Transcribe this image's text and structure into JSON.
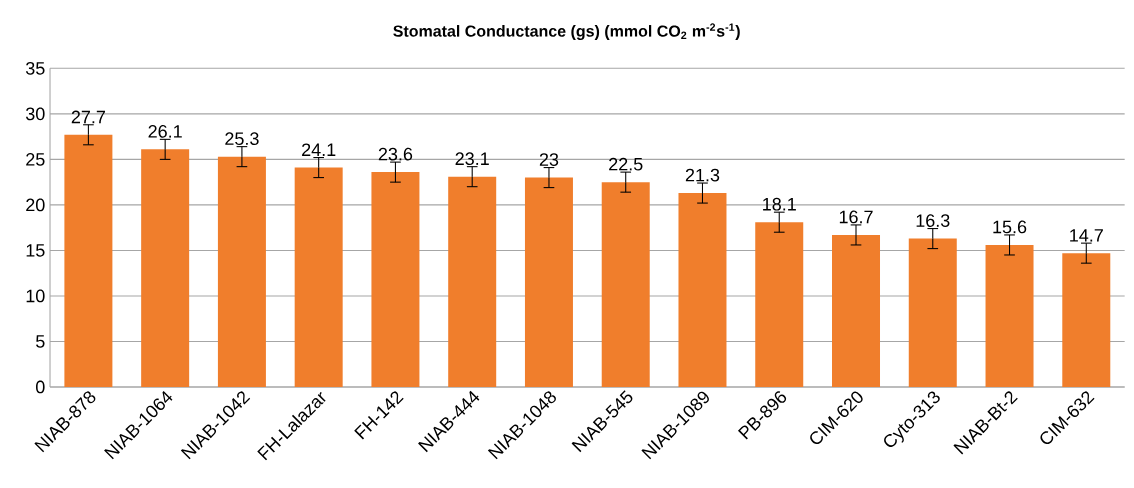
{
  "chart_data": {
    "type": "bar",
    "title": "Stomatal Conductance (gs) (mmol CO$_{2}$ m$^{-2}$s$^{-1}$)",
    "categories": [
      "NIAB-878",
      "NIAB-1064",
      "NIAB-1042",
      "FH-Lalazar",
      "FH-142",
      "NIAB-444",
      "NIAB-1048",
      "NIAB-545",
      "NIAB-1089",
      "PB-896",
      "CIM-620",
      "Cyto-313",
      "NIAB-Bt-2",
      "CIM-632"
    ],
    "values": [
      27.7,
      26.1,
      25.3,
      24.1,
      23.6,
      23.1,
      23,
      22.5,
      21.3,
      18.1,
      16.7,
      16.3,
      15.6,
      14.7
    ],
    "errors": [
      1.1,
      1.1,
      1.1,
      1.1,
      1.1,
      1.1,
      1.1,
      1.1,
      1.1,
      1.1,
      1.1,
      1.1,
      1.1,
      1.1
    ],
    "color": "#f07e2c",
    "ylim": [
      0,
      35
    ],
    "yticks": [
      0,
      5,
      10,
      15,
      20,
      25,
      30,
      35
    ],
    "grid": "y",
    "data_labels": true
  }
}
